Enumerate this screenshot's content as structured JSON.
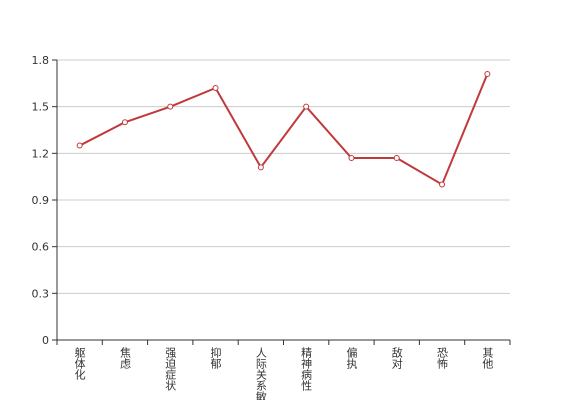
{
  "chart_data": {
    "type": "line",
    "categories": [
      "躯体化",
      "焦虑",
      "强迫症状",
      "抑郁",
      "人际关系敏感",
      "精神病性",
      "偏执",
      "敌对",
      "恐怖",
      "其他"
    ],
    "values": [
      1.25,
      1.4,
      1.5,
      1.62,
      1.11,
      1.5,
      1.17,
      1.17,
      1.0,
      1.71
    ],
    "color": "#c0393b",
    "ylim": [
      0,
      1.8
    ],
    "yticks": [
      0,
      0.3,
      0.6,
      0.9,
      1.2,
      1.5,
      1.8
    ],
    "grid": true
  }
}
